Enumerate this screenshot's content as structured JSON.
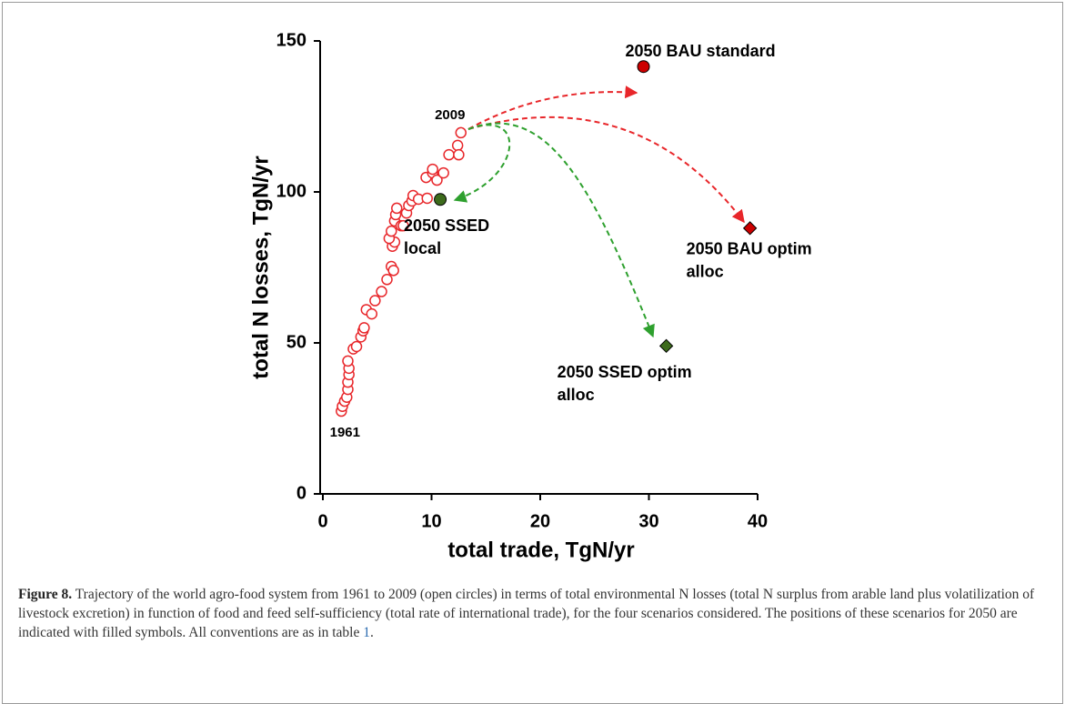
{
  "chart_data": {
    "type": "scatter",
    "x_label": "total trade, TgN/yr",
    "y_label": "total N losses, TgN/yr",
    "xlim": [
      0,
      40
    ],
    "ylim": [
      0,
      150
    ],
    "xticks": [
      0,
      10,
      20,
      30,
      40
    ],
    "yticks": [
      0,
      50,
      100,
      150
    ],
    "series": [
      {
        "color": "#e8262a",
        "marker": "open-circle",
        "x": [
          1.7,
          1.8,
          2.0,
          2.2,
          2.3,
          2.3,
          2.4,
          2.4,
          2.3,
          2.8,
          3.1,
          3.5,
          3.7,
          3.8,
          4.0,
          4.5,
          4.8,
          5.4,
          5.9,
          6.3,
          6.5,
          6.4,
          6.6,
          6.1,
          6.3,
          6.6,
          6.7,
          6.8,
          7.2,
          7.4,
          7.7,
          7.9,
          8.2,
          8.3,
          8.8,
          9.6,
          9.5,
          10.1,
          10.1,
          10.5,
          11.1,
          11.6,
          12.4,
          12.5,
          12.7
        ],
        "y": [
          27.4,
          29,
          30.7,
          32,
          34.6,
          37,
          39.5,
          41.6,
          44,
          48,
          48.8,
          52,
          54,
          55,
          61,
          59.6,
          64,
          67,
          71,
          75.3,
          74,
          82,
          83.4,
          84.6,
          87,
          90.4,
          92.5,
          94.6,
          88.8,
          88.8,
          93,
          95.5,
          97,
          98.8,
          97.6,
          97.9,
          104.8,
          106.3,
          107.5,
          103.9,
          106.3,
          112.3,
          115.4,
          112.3,
          119.6
        ]
      }
    ],
    "annotations": [
      {
        "text": "1961"
      },
      {
        "text": "2009"
      }
    ],
    "scenarios": [
      {
        "label": [
          "2050 BAU standard"
        ],
        "x": 29.5,
        "y": 141.5,
        "marker": "circle",
        "color": "#cc0000"
      },
      {
        "label": [
          "2050 BAU optim",
          "alloc"
        ],
        "x": 39.3,
        "y": 88,
        "marker": "diamond",
        "color": "#cc0000"
      },
      {
        "label": [
          "2050 SSED",
          "local"
        ],
        "x": 10.8,
        "y": 97.5,
        "marker": "circle",
        "color": "#3d6b1c"
      },
      {
        "label": [
          "2050 SSED optim",
          "alloc"
        ],
        "x": 31.6,
        "y": 49,
        "marker": "diamond",
        "color": "#3d6b1c"
      }
    ]
  },
  "caption": {
    "label": "Figure 8.",
    "text": "Trajectory of the world agro-food system from 1961 to 2009 (open circles) in terms of total environmental N losses (total N surplus from arable land plus volatilization of livestock excretion) in function of food and feed self-sufficiency (total rate of international trade), for the four scenarios considered. The positions of these scenarios for 2050 are indicated with filled symbols. All conventions are as in table ",
    "ref": "1",
    "end": "."
  }
}
